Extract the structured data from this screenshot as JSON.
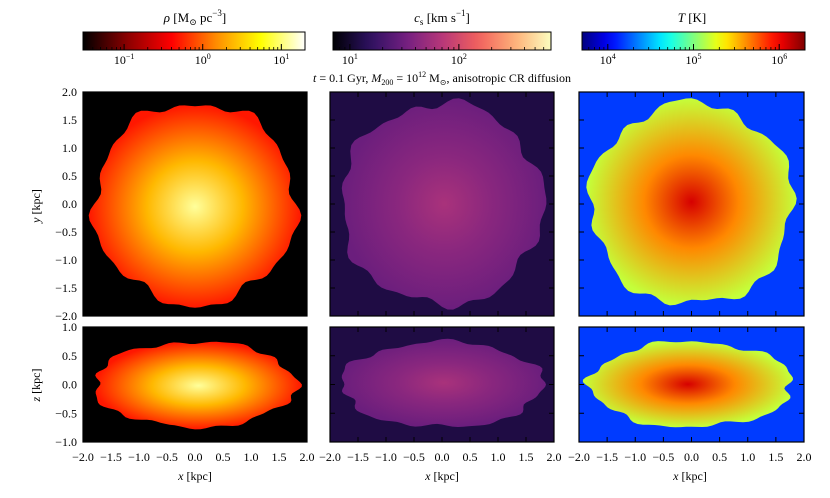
{
  "figure": {
    "title_parts": [
      "t",
      " = 0.1 Gyr, ",
      "M",
      "200",
      " = 10",
      "12",
      " M",
      "⊙",
      ", anisotropic CR diffusion"
    ]
  },
  "colorbars": [
    {
      "id": "rho",
      "label_parts": [
        "ρ",
        " [M",
        "⊙",
        " pc",
        "−3",
        "]"
      ],
      "scale": "log",
      "range": [
        0.03,
        20
      ],
      "ticks": [
        {
          "value": 0.1,
          "base": "10",
          "exp": "−1"
        },
        {
          "value": 1,
          "base": "10",
          "exp": "0"
        },
        {
          "value": 10,
          "base": "10",
          "exp": "1"
        }
      ],
      "colormap": "hot",
      "colors": [
        "#000000",
        "#8b0000",
        "#ff0000",
        "#ff8c00",
        "#ffff00",
        "#ffffff"
      ]
    },
    {
      "id": "cs",
      "label_parts": [
        "c",
        "s",
        " [km s",
        "−1",
        "]"
      ],
      "scale": "log",
      "range": [
        7,
        700
      ],
      "ticks": [
        {
          "value": 10,
          "base": "10",
          "exp": "1"
        },
        {
          "value": 100,
          "base": "10",
          "exp": "2"
        }
      ],
      "colormap": "plasma-like",
      "colors": [
        "#000004",
        "#2c115f",
        "#721f81",
        "#b73779",
        "#f1605d",
        "#feb078",
        "#fcfdbf"
      ]
    },
    {
      "id": "T",
      "label_parts": [
        "T",
        " [K]"
      ],
      "scale": "log",
      "range": [
        5000,
        2000000
      ],
      "ticks": [
        {
          "value": 10000,
          "base": "10",
          "exp": "4"
        },
        {
          "value": 100000,
          "base": "10",
          "exp": "5"
        },
        {
          "value": 1000000,
          "base": "10",
          "exp": "6"
        }
      ],
      "colormap": "jet",
      "colors": [
        "#00007f",
        "#0000ff",
        "#007fff",
        "#00ffff",
        "#7fff7f",
        "#ffff00",
        "#ff7f00",
        "#ff0000",
        "#7f0000"
      ]
    }
  ],
  "chart_data": {
    "type": "heatmap",
    "title": "t = 0.1 Gyr, M200 = 10^12 Msun, anisotropic CR diffusion",
    "columns": [
      "rho",
      "cs",
      "T"
    ],
    "rows": [
      {
        "view": "face-on",
        "xlabel": "x [kpc]",
        "ylabel": "y [kpc]",
        "xlim": [
          -2.0,
          2.0
        ],
        "ylim": [
          -2.0,
          2.0
        ],
        "yticks": [
          "−2.0",
          "−1.5",
          "−1.0",
          "−0.5",
          "0.0",
          "0.5",
          "1.0",
          "1.5",
          "2.0"
        ]
      },
      {
        "view": "edge-on",
        "xlabel": "x [kpc]",
        "ylabel": "z [kpc]",
        "xlim": [
          -2.0,
          2.0
        ],
        "ylim": [
          -1.0,
          1.0
        ],
        "yticks": [
          "−1.0",
          "−0.5",
          "0.0",
          "0.5",
          "1.0"
        ]
      }
    ],
    "xticks": [
      "−2.0",
      "−1.5",
      "−1.0",
      "−0.5",
      "0.0",
      "0.5",
      "1.0",
      "1.5",
      "2.0"
    ],
    "xlabel_parts": [
      "x",
      " [kpc]"
    ],
    "ylabel_top_parts": [
      "y",
      " [kpc]"
    ],
    "ylabel_bottom_parts": [
      "z",
      " [kpc]"
    ],
    "maps": {
      "face_on": {
        "shape": "disk",
        "radius_kpc": 1.8
      },
      "edge_on": {
        "shape": "slab",
        "half_width_kpc": 1.8,
        "half_height_kpc": 0.55
      },
      "rho": {
        "center": 12,
        "edge": 0.5,
        "background": 0.03
      },
      "cs": {
        "center": 60,
        "edge": 30,
        "background": 12
      },
      "T": {
        "center": 1200000,
        "edge": 150000,
        "background": 15000
      }
    }
  }
}
